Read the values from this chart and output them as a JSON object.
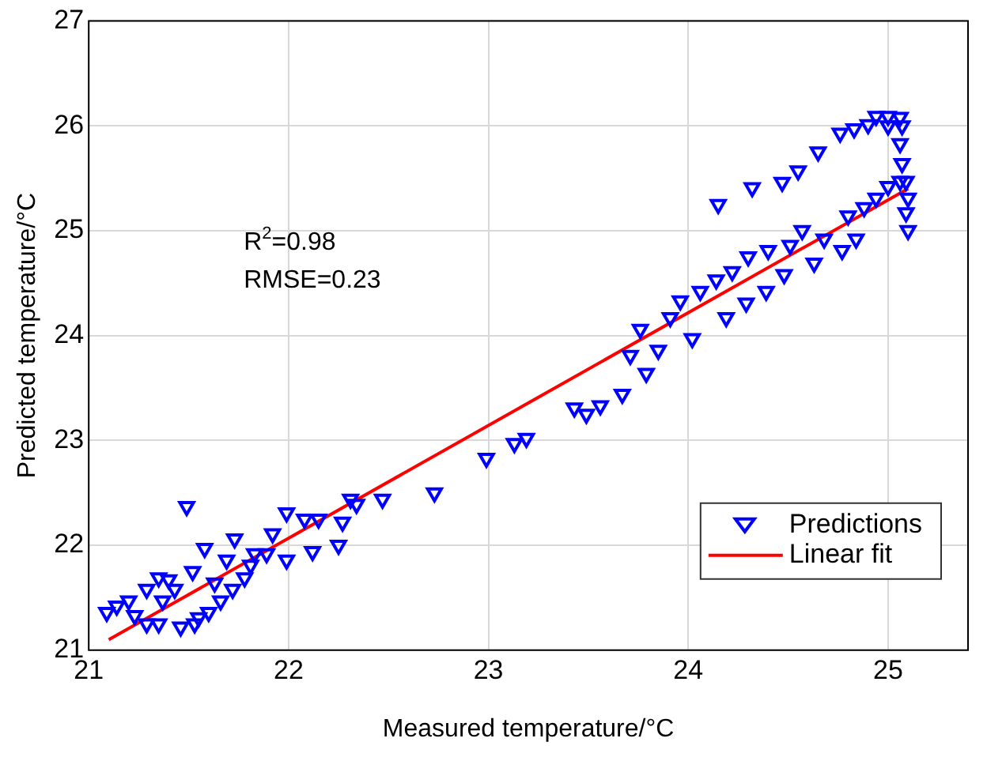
{
  "chart_data": {
    "type": "scatter",
    "xlabel": "Measured temperature/°C",
    "ylabel": "Predicted temperature/°C",
    "xlim": [
      21,
      25.4
    ],
    "xticks": [
      21,
      22,
      23,
      24,
      25
    ],
    "ylim": [
      21,
      27
    ],
    "yticks": [
      21,
      22,
      23,
      24,
      25,
      26,
      27
    ],
    "grid": true,
    "legend": "bottom right",
    "marker": "triangle",
    "annotations": [
      "R$^{2}$=0.98",
      "RMSE=0.23"
    ],
    "series": [
      {
        "name": "Predictions",
        "color": "#0000ff",
        "x": [
          21.09,
          21.14,
          21.2,
          21.23,
          21.29,
          21.29,
          21.35,
          21.35,
          21.37,
          21.4,
          21.43,
          21.46,
          21.49,
          21.52,
          21.53,
          21.55,
          21.58,
          21.6,
          21.63,
          21.66,
          21.69,
          21.72,
          21.73,
          21.78,
          21.81,
          21.83,
          21.89,
          21.92,
          21.99,
          21.99,
          22.08,
          22.12,
          22.15,
          22.25,
          22.27,
          22.31,
          22.34,
          22.47,
          22.73,
          22.99,
          23.13,
          23.19,
          23.43,
          23.49,
          23.56,
          23.67,
          23.71,
          23.76,
          23.79,
          23.85,
          23.91,
          23.96,
          24.02,
          24.06,
          24.14,
          24.19,
          24.22,
          24.29,
          24.3,
          24.39,
          24.4,
          24.48,
          24.51,
          24.57,
          24.63,
          24.68,
          24.77,
          24.8,
          24.84,
          24.88,
          24.94,
          25,
          25.06,
          24.15,
          24.32,
          24.47,
          24.55,
          24.65,
          24.76,
          24.83,
          24.9,
          24.94,
          25,
          25,
          25.06,
          25.07,
          25.06,
          25.07,
          25.09,
          25.1,
          25.09,
          25.1
        ],
        "values": [
          21.36,
          21.42,
          21.47,
          21.33,
          21.58,
          21.25,
          21.25,
          21.69,
          21.47,
          21.67,
          21.58,
          21.22,
          22.37,
          21.75,
          21.25,
          21.31,
          21.97,
          21.36,
          21.64,
          21.47,
          21.86,
          21.58,
          22.06,
          21.69,
          21.81,
          21.92,
          21.92,
          22.11,
          22.31,
          21.86,
          22.25,
          21.94,
          22.25,
          22,
          22.22,
          22.44,
          22.39,
          22.44,
          22.5,
          22.83,
          22.97,
          23.02,
          23.31,
          23.25,
          23.33,
          23.44,
          23.81,
          24.06,
          23.64,
          23.86,
          24.17,
          24.33,
          23.97,
          24.42,
          24.53,
          24.17,
          24.61,
          24.31,
          24.75,
          24.42,
          24.81,
          24.58,
          24.86,
          25,
          24.69,
          24.92,
          24.81,
          25.14,
          24.92,
          25.22,
          25.31,
          25.42,
          25.47,
          25.25,
          25.41,
          25.46,
          25.57,
          25.75,
          25.93,
          25.97,
          26.01,
          26.09,
          26.09,
          26,
          26.08,
          26,
          25.83,
          25.64,
          25.47,
          25.31,
          25.17,
          25
        ]
      },
      {
        "name": "Linear fit",
        "type": "line",
        "color": "#ff0000",
        "marker": "none",
        "x": [
          21.1,
          25.1
        ],
        "values": [
          21.1,
          25.4
        ]
      }
    ]
  }
}
